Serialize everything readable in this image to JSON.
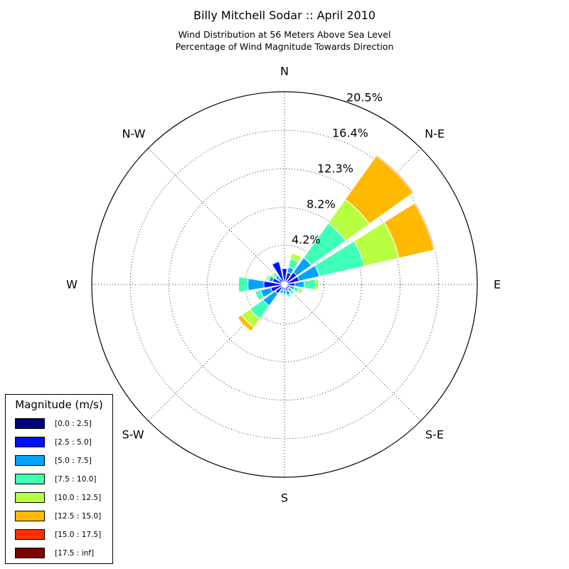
{
  "chart_data": {
    "type": "windrose",
    "title": "Billy Mitchell Sodar :: April 2010",
    "subtitle": [
      "Wind Distribution at 56 Meters Above Sea Level",
      "Percentage of Wind Magnitude Towards Direction"
    ],
    "directions": [
      "N",
      "N-E",
      "E",
      "S-E",
      "S",
      "S-W",
      "W",
      "N-W"
    ],
    "radial_ticks": [
      "4.2%",
      "8.2%",
      "12.3%",
      "16.4%",
      "20.5%"
    ],
    "radial_tick_values": [
      4.2,
      8.2,
      12.3,
      16.4,
      20.5
    ],
    "rmax": 20.5,
    "grid": true,
    "legend_title": "Magnitude (m/s)",
    "legend_position": "lower-left",
    "bins": [
      {
        "label": "[0.0 : 2.5]",
        "color": "#00007f"
      },
      {
        "label": "[2.5 : 5.0]",
        "color": "#0010ff"
      },
      {
        "label": "[5.0 : 7.5]",
        "color": "#00a4ff"
      },
      {
        "label": "[7.5 : 10.0]",
        "color": "#40ffb7"
      },
      {
        "label": "[10.0 : 12.5]",
        "color": "#b7ff40"
      },
      {
        "label": "[12.5 : 15.0]",
        "color": "#ffb900"
      },
      {
        "label": "[15.0 : 17.5]",
        "color": "#ff3000"
      },
      {
        "label": "[17.5 : inf]",
        "color": "#7f0000"
      }
    ],
    "sector_directions_deg": [
      0,
      22.5,
      45,
      67.5,
      90,
      112.5,
      135,
      157.5,
      180,
      202.5,
      225,
      247.5,
      270,
      292.5,
      315,
      337.5
    ],
    "cumulative_values": [
      [
        0.3,
        1.7,
        1.8,
        1.8,
        1.8,
        1.8,
        1.8,
        1.8
      ],
      [
        0.3,
        1.3,
        1.9,
        2.8,
        3.4,
        3.4,
        3.4,
        3.4
      ],
      [
        0.3,
        1.6,
        3.5,
        8.0,
        11.1,
        16.8,
        16.8,
        16.9
      ],
      [
        0.3,
        1.6,
        3.8,
        8.7,
        12.5,
        16.3,
        16.3,
        16.4
      ],
      [
        0.3,
        1.1,
        2.1,
        3.3,
        3.6,
        3.6,
        3.6,
        3.6
      ],
      [
        0.3,
        0.6,
        1.1,
        1.6,
        2.0,
        2.0,
        2.0,
        2.0
      ],
      [
        0.3,
        0.6,
        1.0,
        1.3,
        1.3,
        1.3,
        1.3,
        1.3
      ],
      [
        0.3,
        0.7,
        1.2,
        1.4,
        1.4,
        1.4,
        1.4,
        1.4
      ],
      [
        0.3,
        0.6,
        1.0,
        1.2,
        1.2,
        1.2,
        1.2,
        1.2
      ],
      [
        0.3,
        0.6,
        1.0,
        1.1,
        1.1,
        1.1,
        1.1,
        1.1
      ],
      [
        0.3,
        1.2,
        2.8,
        4.5,
        5.6,
        6.1,
        6.1,
        6.1
      ],
      [
        0.3,
        1.5,
        2.6,
        3.2,
        3.2,
        3.2,
        3.2,
        3.2
      ],
      [
        0.3,
        2.2,
        3.9,
        4.9,
        4.9,
        4.9,
        4.9,
        4.9
      ],
      [
        0.3,
        1.3,
        1.7,
        1.9,
        2.1,
        2.1,
        2.1,
        2.1
      ],
      [
        0.3,
        0.8,
        1.2,
        1.5,
        1.7,
        1.7,
        1.7,
        1.7
      ],
      [
        0.3,
        2.5,
        2.6,
        2.6,
        2.6,
        2.6,
        2.6,
        2.6
      ]
    ]
  }
}
